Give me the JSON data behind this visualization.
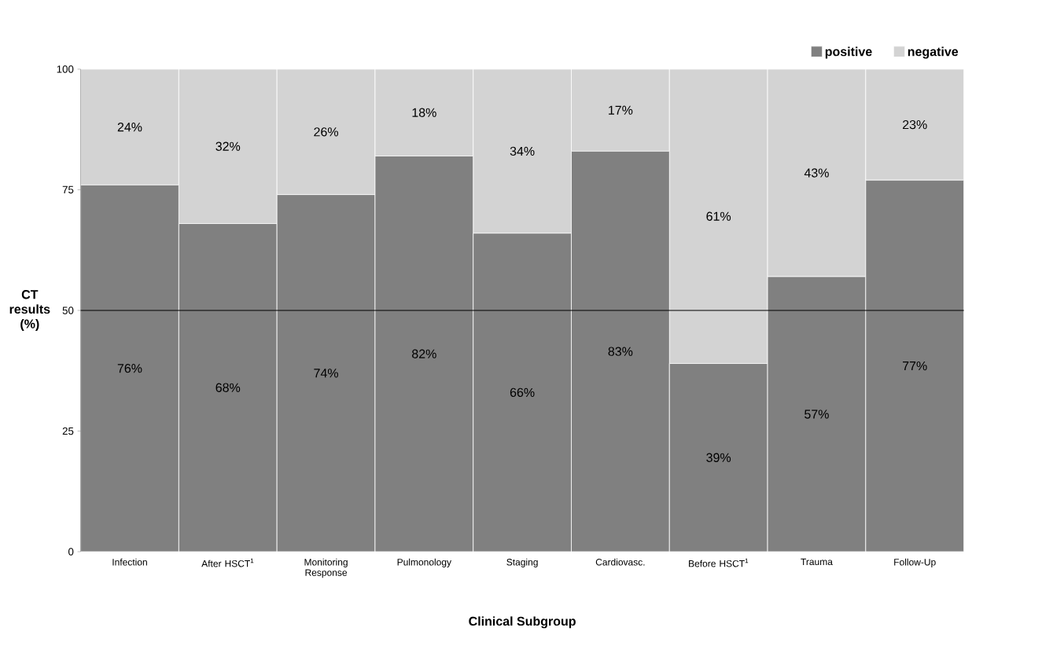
{
  "chart_data": {
    "type": "bar",
    "stacked": true,
    "xlabel": "Clinical Subgroup",
    "ylabel": "CT results (%)",
    "categories": [
      "Infection",
      "After HSCT$^{1}$",
      "Monitoring Response",
      "Pulmonology",
      "Staging",
      "Cardiovasc.",
      "Before HSCT$^{1}$",
      "Trauma",
      "Follow-Up"
    ],
    "series": [
      {
        "name": "positive",
        "color": "#808080",
        "values": [
          76,
          68,
          74,
          82,
          66,
          83,
          39,
          57,
          77
        ],
        "value_labels": [
          "76%",
          "68%",
          "74%",
          "82%",
          "66%",
          "83%",
          "39%",
          "57%",
          "77%"
        ]
      },
      {
        "name": "negative",
        "color": "#d3d3d3",
        "values": [
          24,
          32,
          26,
          18,
          34,
          17,
          61,
          43,
          23
        ],
        "value_labels": [
          "24%",
          "32%",
          "26%",
          "18%",
          "34%",
          "17%",
          "61%",
          "43%",
          "23%"
        ]
      }
    ],
    "ylim": [
      0,
      100
    ],
    "yticks": [
      0,
      25,
      50,
      75,
      100
    ],
    "ref_lines": [
      {
        "axis": "y",
        "value": 50,
        "color": "#000000"
      }
    ],
    "legend": "top right"
  }
}
